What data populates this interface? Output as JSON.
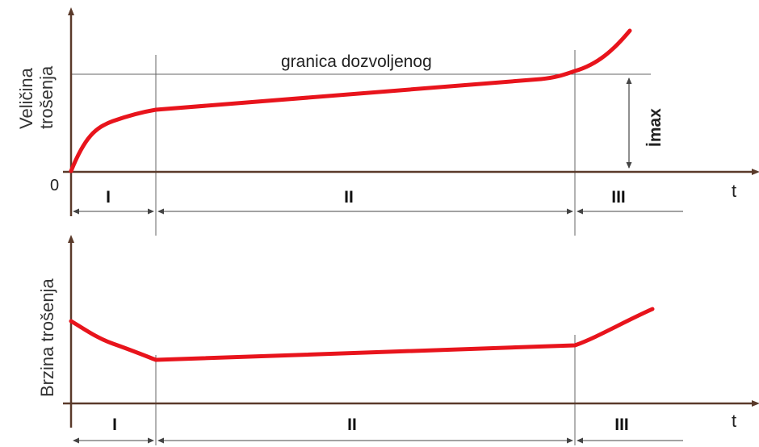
{
  "top_chart": {
    "y_label_line1": "Veličina",
    "y_label_line2": "trošenja",
    "origin_label": "0",
    "x_label": "t",
    "limit_label": "granica dozvoljenog",
    "imax_label": "İmax",
    "phases": [
      "I",
      "II",
      "III"
    ]
  },
  "bottom_chart": {
    "y_label": "Brzina trošenja",
    "x_label": "t",
    "phases": [
      "I",
      "II",
      "III"
    ]
  },
  "colors": {
    "curve": "#e8141c",
    "axis": "#5a3a2a",
    "guide": "#555555",
    "text": "#222222"
  }
}
